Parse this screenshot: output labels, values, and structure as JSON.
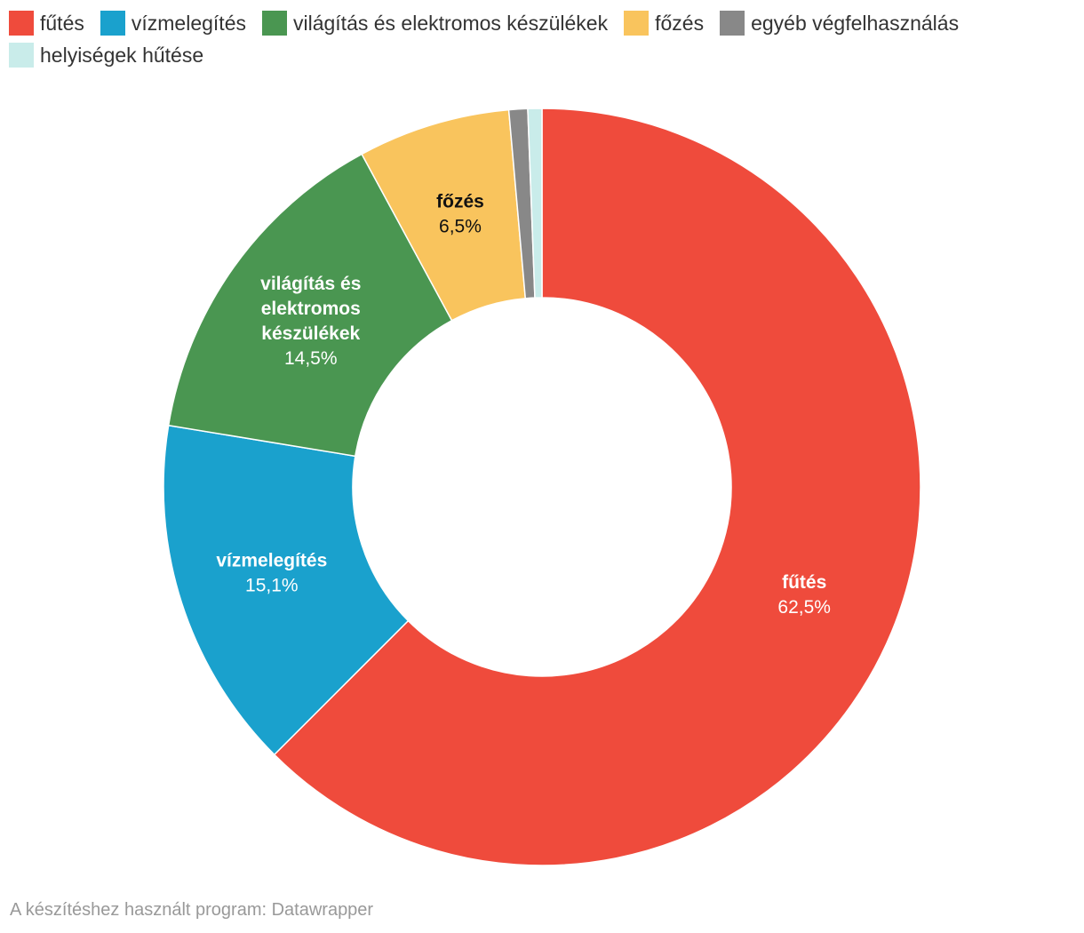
{
  "chart_data": {
    "type": "pie",
    "style": "donut",
    "legend_position": "top-left",
    "slices": [
      {
        "name": "fűtés",
        "value": 62.5,
        "value_label": "62,5%",
        "color": "#ef4b3c",
        "label_lines": [
          "fűtés"
        ],
        "label_color": "#ffffff"
      },
      {
        "name": "vízmelegítés",
        "value": 15.1,
        "value_label": "15,1%",
        "color": "#1aa1cd",
        "label_lines": [
          "vízmelegítés"
        ],
        "label_color": "#ffffff"
      },
      {
        "name": "világítás és elektromos készülékek",
        "value": 14.5,
        "value_label": "14,5%",
        "color": "#4a9651",
        "label_lines": [
          "világítás és",
          "elektromos",
          "készülékek"
        ],
        "label_color": "#ffffff"
      },
      {
        "name": "főzés",
        "value": 6.5,
        "value_label": "6,5%",
        "color": "#f9c45d",
        "label_lines": [
          "főzés"
        ],
        "label_color": "#111111"
      },
      {
        "name": "egyéb végfelhasználás",
        "value": 0.8,
        "value_label": "",
        "color": "#888888",
        "label_lines": [],
        "label_color": "#ffffff"
      },
      {
        "name": "helyiségek hűtése",
        "value": 0.6,
        "value_label": "",
        "color": "#c9ecea",
        "label_lines": [],
        "label_color": "#333333"
      }
    ]
  },
  "footer": {
    "credit": "A készítéshez használt program: Datawrapper"
  }
}
